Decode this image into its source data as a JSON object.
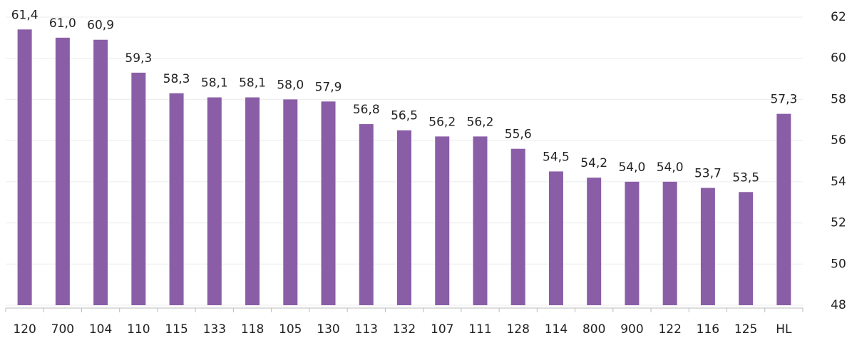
{
  "chart_data": {
    "type": "bar",
    "categories": [
      "120",
      "700",
      "104",
      "110",
      "115",
      "133",
      "118",
      "105",
      "130",
      "113",
      "132",
      "107",
      "111",
      "128",
      "114",
      "800",
      "900",
      "122",
      "116",
      "125",
      "HL"
    ],
    "values": [
      61.4,
      61.0,
      60.9,
      59.3,
      58.3,
      58.1,
      58.1,
      58.0,
      57.9,
      56.8,
      56.5,
      56.2,
      56.2,
      55.6,
      54.5,
      54.2,
      54.0,
      54.0,
      53.7,
      53.5,
      57.3
    ],
    "value_labels": [
      "61,4",
      "61,0",
      "60,9",
      "59,3",
      "58,3",
      "58,1",
      "58,1",
      "58,0",
      "57,9",
      "56,8",
      "56,5",
      "56,2",
      "56,2",
      "55,6",
      "54,5",
      "54,2",
      "54,0",
      "54,0",
      "53,7",
      "53,5",
      "57,3"
    ],
    "color": "#8a5ea6",
    "ylim": [
      48,
      62
    ],
    "yticks": [
      48,
      50,
      52,
      54,
      56,
      58,
      60,
      62
    ],
    "y_axis_side": "right",
    "grid": true
  }
}
